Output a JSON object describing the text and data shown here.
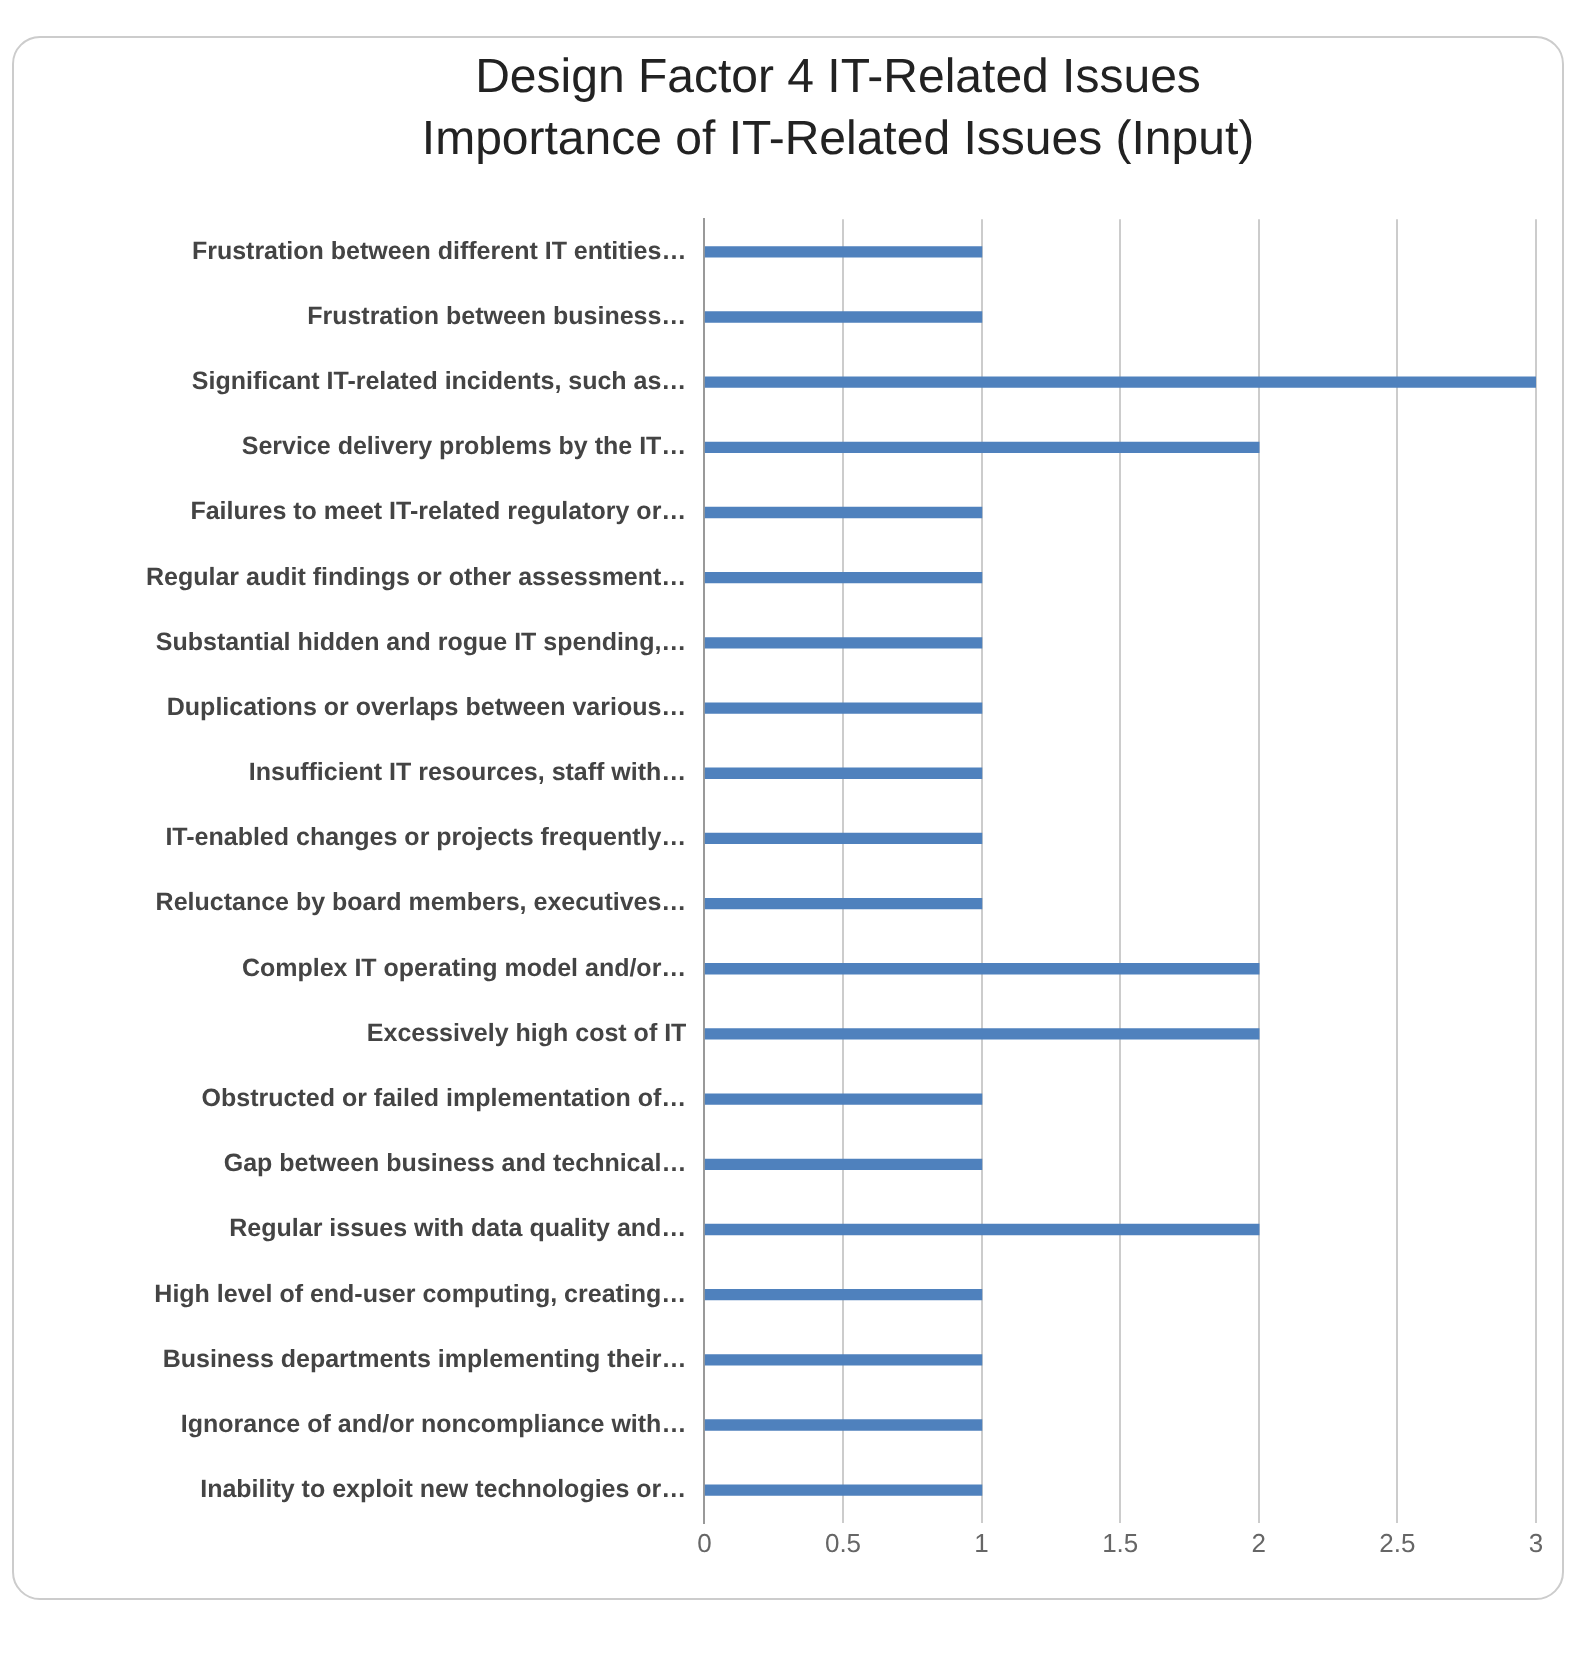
{
  "chart_data": {
    "type": "bar",
    "orientation": "horizontal",
    "title": "Design Factor 4 IT-Related Issues",
    "subtitle": "Importance of IT-Related Issues (Input)",
    "categories": [
      "Frustration between different IT entities…",
      "Frustration between business…",
      "Significant IT-related incidents, such as…",
      "Service delivery problems by the IT…",
      "Failures to meet IT-related regulatory or…",
      "Regular audit findings or other assessment…",
      "Substantial hidden and rogue IT spending,…",
      "Duplications or overlaps between various…",
      "Insufficient IT resources, staff with…",
      "IT-enabled changes or projects frequently…",
      "Reluctance by board members, executives…",
      "Complex IT operating model and/or…",
      "Excessively high cost of IT",
      "Obstructed or failed implementation of…",
      "Gap between business and technical…",
      "Regular issues with data quality and…",
      "High level of end-user computing, creating…",
      "Business departments implementing their…",
      "Ignorance of and/or noncompliance with…",
      "Inability to exploit new technologies or…"
    ],
    "series": [
      {
        "color": "#4f81bd",
        "values": [
          1,
          1,
          3,
          2,
          1,
          1,
          1,
          1,
          1,
          1,
          1,
          2,
          2,
          1,
          1,
          2,
          1,
          1,
          1,
          1
        ]
      }
    ],
    "xlim": [
      0,
      3
    ],
    "xticks": [
      0,
      0.5,
      1,
      1.5,
      2,
      2.5,
      3
    ],
    "grid": "x",
    "legend": false
  }
}
